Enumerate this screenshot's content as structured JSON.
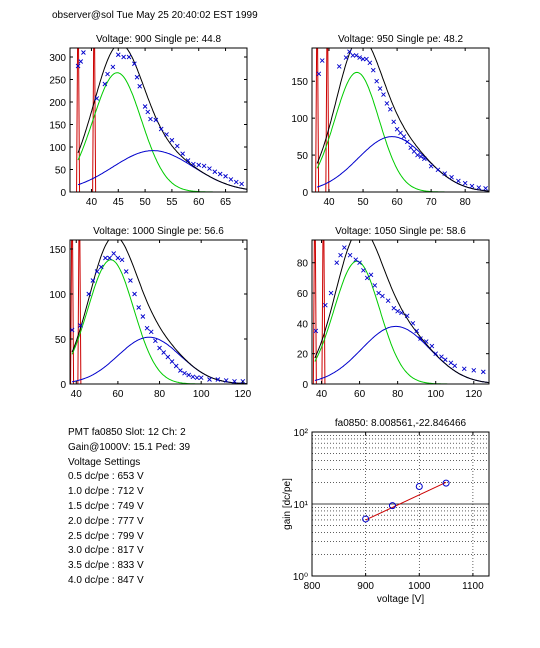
{
  "header": "observer@sol  Tue May 25 20:40:02 EST 1999",
  "info": {
    "pmt": "PMT fa0850 Slot: 12 Ch: 2",
    "gain": "Gain@1000V: 15.1 Ped: 39",
    "settings_title": "Voltage Settings",
    "settings": [
      "0.5 dc/pe : 653 V",
      "1.0 dc/pe : 712 V",
      "1.5 dc/pe : 749 V",
      "2.0 dc/pe : 777 V",
      "2.5 dc/pe : 799 V",
      "3.0 dc/pe : 817 V",
      "3.5 dc/pe : 833 V",
      "4.0 dc/pe : 847 V"
    ]
  },
  "colors": {
    "data": "#0000cc",
    "fit": "#000000",
    "single": "#00cc00",
    "double": "#0000cc",
    "pedestal": "#cc0000",
    "line": "#cc0000"
  },
  "chart_data": [
    {
      "type": "line",
      "title": "Voltage: 900 Single pe: 44.8",
      "xlim": [
        36,
        69
      ],
      "ylim": [
        0,
        320
      ],
      "xticks": [
        40,
        45,
        50,
        55,
        60,
        65
      ],
      "yticks": [
        0,
        50,
        100,
        150,
        200,
        250,
        300
      ],
      "single_peak": 44.8,
      "single_amp": 265,
      "single_sigma": 4.5,
      "double_peak": 51.5,
      "double_amp": 92,
      "double_sigma": 7.5,
      "pedestal_x": [
        37.5,
        40.5
      ],
      "x_start": 37.5,
      "points": [
        [
          37.5,
          280
        ],
        [
          38,
          290
        ],
        [
          38.5,
          310
        ],
        [
          41,
          208
        ],
        [
          42.5,
          240
        ],
        [
          43,
          262
        ],
        [
          44,
          278
        ],
        [
          45,
          305
        ],
        [
          46,
          300
        ],
        [
          47,
          300
        ],
        [
          48,
          285
        ],
        [
          48.5,
          255
        ],
        [
          49,
          235
        ],
        [
          50,
          190
        ],
        [
          50.5,
          178
        ],
        [
          51,
          162
        ],
        [
          52,
          160
        ],
        [
          53,
          140
        ],
        [
          54,
          128
        ],
        [
          55,
          115
        ],
        [
          56,
          102
        ],
        [
          57,
          85
        ],
        [
          58,
          70
        ],
        [
          59,
          62
        ],
        [
          60,
          60
        ],
        [
          61,
          58
        ],
        [
          62,
          52
        ],
        [
          63,
          45
        ],
        [
          64,
          40
        ],
        [
          65,
          35
        ],
        [
          66,
          28
        ],
        [
          67,
          22
        ],
        [
          68,
          18
        ]
      ]
    },
    {
      "type": "line",
      "title": "Voltage: 950 Single pe: 48.2",
      "xlim": [
        35,
        87
      ],
      "ylim": [
        0,
        195
      ],
      "xticks": [
        40,
        50,
        60,
        70,
        80
      ],
      "yticks": [
        0,
        50,
        100,
        150
      ],
      "single_peak": 48.2,
      "single_amp": 162,
      "single_sigma": 6.5,
      "double_peak": 58.5,
      "double_amp": 75,
      "double_sigma": 10,
      "pedestal_x": [
        36.5,
        39.5
      ],
      "x_start": 36.5,
      "points": [
        [
          37,
          160
        ],
        [
          38,
          178
        ],
        [
          43,
          170
        ],
        [
          45,
          182
        ],
        [
          46,
          190
        ],
        [
          47,
          185
        ],
        [
          48,
          185
        ],
        [
          49,
          182
        ],
        [
          50,
          180
        ],
        [
          51,
          180
        ],
        [
          52,
          175
        ],
        [
          53,
          165
        ],
        [
          54,
          150
        ],
        [
          55,
          140
        ],
        [
          56,
          132
        ],
        [
          57,
          120
        ],
        [
          58,
          112
        ],
        [
          59,
          95
        ],
        [
          60,
          85
        ],
        [
          61,
          80
        ],
        [
          62,
          75
        ],
        [
          63,
          68
        ],
        [
          64,
          60
        ],
        [
          65,
          55
        ],
        [
          66,
          50
        ],
        [
          67,
          48
        ],
        [
          68,
          45
        ],
        [
          70,
          35
        ],
        [
          72,
          30
        ],
        [
          74,
          25
        ],
        [
          76,
          20
        ],
        [
          78,
          15
        ],
        [
          80,
          12
        ],
        [
          82,
          8
        ],
        [
          84,
          6
        ],
        [
          86,
          5
        ]
      ]
    },
    {
      "type": "line",
      "title": "Voltage: 1000 Single pe: 56.6",
      "xlim": [
        37,
        122
      ],
      "ylim": [
        0,
        160
      ],
      "xticks": [
        40,
        60,
        80,
        100,
        120
      ],
      "yticks": [
        0,
        50,
        100,
        150
      ],
      "single_peak": 56.6,
      "single_amp": 138,
      "single_sigma": 11,
      "double_peak": 75,
      "double_amp": 52,
      "double_sigma": 15,
      "pedestal_x": [
        38,
        41.5
      ],
      "x_start": 38,
      "points": [
        [
          38,
          60
        ],
        [
          42,
          65
        ],
        [
          46,
          100
        ],
        [
          48,
          115
        ],
        [
          50,
          125
        ],
        [
          52,
          130
        ],
        [
          54,
          140
        ],
        [
          56,
          140
        ],
        [
          58,
          145
        ],
        [
          60,
          140
        ],
        [
          62,
          138
        ],
        [
          64,
          125
        ],
        [
          66,
          115
        ],
        [
          68,
          100
        ],
        [
          70,
          85
        ],
        [
          72,
          75
        ],
        [
          74,
          62
        ],
        [
          76,
          58
        ],
        [
          78,
          48
        ],
        [
          80,
          40
        ],
        [
          82,
          35
        ],
        [
          84,
          30
        ],
        [
          86,
          25
        ],
        [
          88,
          20
        ],
        [
          90,
          15
        ],
        [
          92,
          12
        ],
        [
          94,
          10
        ],
        [
          96,
          8
        ],
        [
          98,
          7
        ],
        [
          100,
          7
        ],
        [
          104,
          5
        ],
        [
          108,
          5
        ],
        [
          112,
          4
        ],
        [
          116,
          3
        ],
        [
          120,
          3
        ]
      ]
    },
    {
      "type": "line",
      "title": "Voltage: 1050 Single pe: 58.6",
      "xlim": [
        35,
        128
      ],
      "ylim": [
        0,
        95
      ],
      "xticks": [
        40,
        60,
        80,
        100,
        120
      ],
      "yticks": [
        0,
        20,
        40,
        60,
        80
      ],
      "single_peak": 58.6,
      "single_amp": 81,
      "single_sigma": 12,
      "double_peak": 79,
      "double_amp": 38,
      "double_sigma": 18,
      "pedestal_x": [
        36.5,
        41
      ],
      "x_start": 36.5,
      "points": [
        [
          37,
          35
        ],
        [
          42,
          52
        ],
        [
          45,
          60
        ],
        [
          48,
          80
        ],
        [
          50,
          85
        ],
        [
          52,
          90
        ],
        [
          55,
          85
        ],
        [
          58,
          82
        ],
        [
          60,
          80
        ],
        [
          62,
          75
        ],
        [
          64,
          70
        ],
        [
          66,
          72
        ],
        [
          68,
          65
        ],
        [
          70,
          60
        ],
        [
          72,
          58
        ],
        [
          75,
          55
        ],
        [
          78,
          50
        ],
        [
          80,
          48
        ],
        [
          82,
          47
        ],
        [
          85,
          45
        ],
        [
          88,
          40
        ],
        [
          90,
          35
        ],
        [
          92,
          30
        ],
        [
          95,
          28
        ],
        [
          98,
          25
        ],
        [
          100,
          20
        ],
        [
          103,
          18
        ],
        [
          105,
          16
        ],
        [
          108,
          14
        ],
        [
          110,
          12
        ],
        [
          115,
          10
        ],
        [
          120,
          9
        ],
        [
          125,
          8
        ]
      ]
    },
    {
      "type": "scatter",
      "title": "fa0850: 8.008561,-22.846466",
      "xlabel": "voltage [V]",
      "ylabel": "gain [dc/pe]",
      "xlim": [
        800,
        1130
      ],
      "ylim": [
        1,
        100
      ],
      "yscale": "log",
      "xticks": [
        800,
        900,
        1000,
        1100
      ],
      "yticks_labels": [
        "10⁰",
        "10¹",
        "10²"
      ],
      "grid": true,
      "points": [
        [
          900,
          6.2
        ],
        [
          950,
          9.5
        ],
        [
          1000,
          17.5
        ],
        [
          1050,
          19.5
        ]
      ],
      "fit_line": [
        [
          900,
          6.0
        ],
        [
          1050,
          20.0
        ]
      ]
    }
  ]
}
